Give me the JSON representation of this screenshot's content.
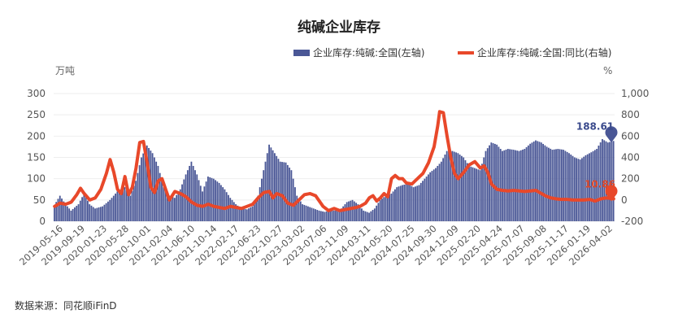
{
  "chart_data": {
    "type": "bar",
    "title": "纯碱企业库存",
    "source": "数据来源：同花顺iFinD",
    "left_unit": "万吨",
    "right_unit": "%",
    "y_left": {
      "min": 0,
      "max": 300,
      "ticks": [
        "0",
        "50",
        "100",
        "150",
        "200",
        "250",
        "300"
      ]
    },
    "y_right": {
      "min": -200,
      "max": 1000,
      "ticks": [
        "-200",
        "0",
        "200",
        "400",
        "600",
        "800",
        "1,000"
      ]
    },
    "x_tick_labels": [
      "2019-05-16",
      "2019-09-19",
      "2020-01-23",
      "2020-05-28",
      "2020-10-01",
      "2021-02-04",
      "2021-06-10",
      "2021-10-14",
      "2022-02-17",
      "2022-06-23",
      "2022-10-27",
      "2023-03-02",
      "2023-07-06",
      "2023-11-09",
      "2024-03-11",
      "2024-05-20",
      "2024-07-25",
      "2024-09-30",
      "2024-12-09",
      "2025-02-20",
      "2025-04-24",
      "2025-07-07",
      "2025-09-08",
      "2025-11-17",
      "2026-01-19",
      "2026-04-02"
    ],
    "series": [
      {
        "name": "企业库存:纯碱:全国(左轴)",
        "axis": "left",
        "kind": "bar",
        "color": "#4a5796",
        "last_label": "188.61",
        "anchors": [
          [
            0,
            38
          ],
          [
            3,
            60
          ],
          [
            6,
            40
          ],
          [
            9,
            25
          ],
          [
            13,
            40
          ],
          [
            16,
            65
          ],
          [
            19,
            40
          ],
          [
            22,
            30
          ],
          [
            26,
            35
          ],
          [
            30,
            50
          ],
          [
            34,
            70
          ],
          [
            38,
            80
          ],
          [
            41,
            60
          ],
          [
            44,
            95
          ],
          [
            47,
            150
          ],
          [
            50,
            178
          ],
          [
            53,
            160
          ],
          [
            56,
            130
          ],
          [
            59,
            80
          ],
          [
            62,
            60
          ],
          [
            65,
            55
          ],
          [
            68,
            75
          ],
          [
            71,
            110
          ],
          [
            74,
            140
          ],
          [
            77,
            110
          ],
          [
            80,
            70
          ],
          [
            83,
            105
          ],
          [
            86,
            100
          ],
          [
            89,
            90
          ],
          [
            92,
            75
          ],
          [
            95,
            55
          ],
          [
            98,
            40
          ],
          [
            101,
            30
          ],
          [
            104,
            28
          ],
          [
            107,
            35
          ],
          [
            110,
            60
          ],
          [
            113,
            120
          ],
          [
            116,
            180
          ],
          [
            119,
            160
          ],
          [
            122,
            140
          ],
          [
            125,
            138
          ],
          [
            128,
            120
          ],
          [
            131,
            60
          ],
          [
            134,
            40
          ],
          [
            137,
            35
          ],
          [
            140,
            30
          ],
          [
            143,
            25
          ],
          [
            146,
            22
          ],
          [
            149,
            25
          ],
          [
            152,
            25
          ],
          [
            155,
            30
          ],
          [
            158,
            45
          ],
          [
            161,
            50
          ],
          [
            164,
            40
          ],
          [
            167,
            25
          ],
          [
            170,
            20
          ],
          [
            173,
            30
          ],
          [
            176,
            50
          ],
          [
            179,
            60
          ],
          [
            182,
            65
          ],
          [
            185,
            80
          ],
          [
            188,
            85
          ],
          [
            191,
            88
          ],
          [
            194,
            80
          ],
          [
            197,
            85
          ],
          [
            200,
            100
          ],
          [
            203,
            115
          ],
          [
            206,
            125
          ],
          [
            209,
            140
          ],
          [
            212,
            165
          ],
          [
            215,
            165
          ],
          [
            218,
            160
          ],
          [
            221,
            150
          ],
          [
            224,
            130
          ],
          [
            227,
            125
          ],
          [
            230,
            120
          ],
          [
            233,
            165
          ],
          [
            236,
            185
          ],
          [
            239,
            180
          ],
          [
            242,
            165
          ],
          [
            245,
            170
          ],
          [
            248,
            168
          ],
          [
            251,
            165
          ],
          [
            254,
            170
          ],
          [
            257,
            182
          ],
          [
            260,
            190
          ],
          [
            263,
            185
          ],
          [
            266,
            175
          ],
          [
            269,
            168
          ],
          [
            272,
            170
          ],
          [
            275,
            168
          ],
          [
            278,
            160
          ],
          [
            281,
            150
          ],
          [
            284,
            145
          ],
          [
            287,
            155
          ],
          [
            290,
            162
          ],
          [
            293,
            170
          ],
          [
            296,
            193
          ],
          [
            299,
            185
          ],
          [
            302,
            188.61
          ]
        ]
      },
      {
        "name": "企业库存:纯碱:全国:同比(右轴)",
        "axis": "right",
        "kind": "line",
        "color": "#e8482a",
        "last_label": "10.86",
        "anchors": [
          [
            0,
            -60
          ],
          [
            3,
            -30
          ],
          [
            6,
            -40
          ],
          [
            9,
            -20
          ],
          [
            12,
            50
          ],
          [
            14,
            110
          ],
          [
            16,
            60
          ],
          [
            19,
            0
          ],
          [
            22,
            20
          ],
          [
            25,
            100
          ],
          [
            28,
            250
          ],
          [
            30,
            380
          ],
          [
            32,
            260
          ],
          [
            34,
            100
          ],
          [
            36,
            60
          ],
          [
            38,
            220
          ],
          [
            40,
            50
          ],
          [
            42,
            120
          ],
          [
            44,
            300
          ],
          [
            46,
            540
          ],
          [
            48,
            550
          ],
          [
            50,
            350
          ],
          [
            52,
            120
          ],
          [
            54,
            70
          ],
          [
            56,
            180
          ],
          [
            58,
            200
          ],
          [
            60,
            100
          ],
          [
            62,
            0
          ],
          [
            65,
            80
          ],
          [
            68,
            60
          ],
          [
            71,
            30
          ],
          [
            74,
            -20
          ],
          [
            77,
            -50
          ],
          [
            80,
            -60
          ],
          [
            83,
            -40
          ],
          [
            86,
            -60
          ],
          [
            89,
            -70
          ],
          [
            92,
            -80
          ],
          [
            95,
            -60
          ],
          [
            98,
            -70
          ],
          [
            101,
            -80
          ],
          [
            104,
            -60
          ],
          [
            107,
            -40
          ],
          [
            110,
            20
          ],
          [
            113,
            70
          ],
          [
            116,
            80
          ],
          [
            118,
            20
          ],
          [
            120,
            60
          ],
          [
            123,
            40
          ],
          [
            126,
            -30
          ],
          [
            129,
            -50
          ],
          [
            132,
            0
          ],
          [
            135,
            50
          ],
          [
            138,
            60
          ],
          [
            141,
            40
          ],
          [
            143,
            -10
          ],
          [
            145,
            -60
          ],
          [
            148,
            -100
          ],
          [
            151,
            -80
          ],
          [
            154,
            -100
          ],
          [
            157,
            -90
          ],
          [
            160,
            -80
          ],
          [
            163,
            -70
          ],
          [
            165,
            -60
          ],
          [
            168,
            -30
          ],
          [
            170,
            20
          ],
          [
            172,
            40
          ],
          [
            174,
            -10
          ],
          [
            176,
            20
          ],
          [
            178,
            60
          ],
          [
            180,
            30
          ],
          [
            182,
            200
          ],
          [
            184,
            230
          ],
          [
            186,
            200
          ],
          [
            188,
            200
          ],
          [
            190,
            160
          ],
          [
            193,
            150
          ],
          [
            196,
            200
          ],
          [
            199,
            250
          ],
          [
            202,
            350
          ],
          [
            205,
            500
          ],
          [
            207,
            700
          ],
          [
            208,
            830
          ],
          [
            210,
            820
          ],
          [
            212,
            600
          ],
          [
            214,
            400
          ],
          [
            216,
            250
          ],
          [
            218,
            200
          ],
          [
            221,
            260
          ],
          [
            224,
            330
          ],
          [
            227,
            360
          ],
          [
            230,
            300
          ],
          [
            232,
            320
          ],
          [
            234,
            260
          ],
          [
            236,
            150
          ],
          [
            239,
            100
          ],
          [
            242,
            90
          ],
          [
            245,
            85
          ],
          [
            248,
            90
          ],
          [
            251,
            85
          ],
          [
            254,
            80
          ],
          [
            257,
            85
          ],
          [
            260,
            90
          ],
          [
            262,
            70
          ],
          [
            265,
            40
          ],
          [
            268,
            20
          ],
          [
            271,
            10
          ],
          [
            274,
            5
          ],
          [
            277,
            5
          ],
          [
            280,
            0
          ],
          [
            283,
            0
          ],
          [
            286,
            0
          ],
          [
            289,
            5
          ],
          [
            292,
            -10
          ],
          [
            295,
            10
          ],
          [
            298,
            20
          ],
          [
            302,
            10.86
          ]
        ]
      }
    ]
  }
}
